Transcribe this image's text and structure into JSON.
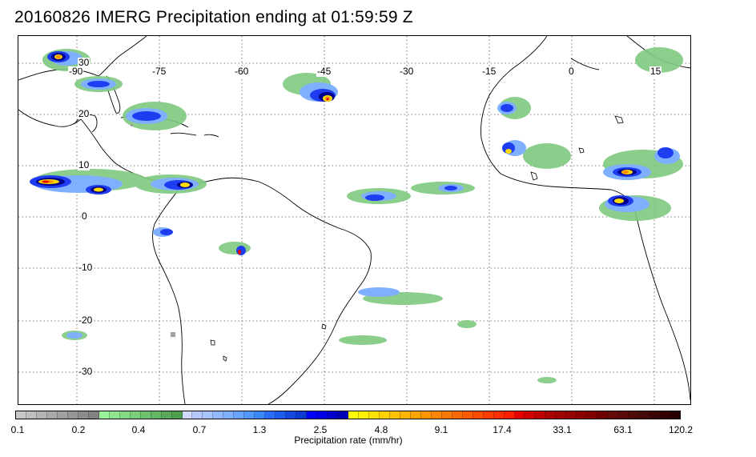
{
  "title": "20160826 IMERG Precipitation ending at 01:59:59 Z",
  "map": {
    "lon_labels": [
      "-90",
      "-75",
      "-60",
      "-45",
      "-30",
      "-15",
      "0",
      "15"
    ],
    "lat_labels": [
      "30",
      "20",
      "10",
      "0",
      "-10",
      "-20",
      "-30"
    ]
  },
  "colorbar": {
    "label": "Precipitation rate (mm/hr)",
    "tick_labels": [
      "0.1",
      "0.2",
      "0.4",
      "0.7",
      "1.3",
      "2.5",
      "4.8",
      "9.1",
      "17.4",
      "33.1",
      "63.1",
      "120.2"
    ],
    "colors": [
      "#c8c8c8",
      "#bebebe",
      "#b4b4b4",
      "#aaaaaa",
      "#a0a0a0",
      "#969696",
      "#8c8c8c",
      "#828282",
      "#9af29a",
      "#8fe68f",
      "#84da84",
      "#79ce79",
      "#6ec26e",
      "#63b663",
      "#58aa58",
      "#4d9e4d",
      "#cfd8ff",
      "#b8c8ff",
      "#a7c6ff",
      "#93b8ff",
      "#7fb0ff",
      "#68a4ff",
      "#5098ff",
      "#3a88ff",
      "#2a6eff",
      "#1e5cf0",
      "#1448e0",
      "#0a3ad0",
      "#0000ff",
      "#0000e6",
      "#0000cc",
      "#0000b8",
      "#ffff00",
      "#fff000",
      "#ffe100",
      "#ffd200",
      "#ffc300",
      "#ffb400",
      "#ffa500",
      "#ff9600",
      "#ff8700",
      "#ff7800",
      "#ff6900",
      "#ff5a00",
      "#ff4b00",
      "#ff3c00",
      "#ff2d00",
      "#ff1e00",
      "#e60000",
      "#d20000",
      "#be0000",
      "#aa0000",
      "#a00000",
      "#960000",
      "#8c0000",
      "#820000",
      "#6e0000",
      "#640a0a",
      "#5a0a0a",
      "#500a0a",
      "#460a0a",
      "#3c0505",
      "#320000",
      "#280000"
    ]
  },
  "precip_colors": {
    "light": "#7fc97f",
    "light_blue": "#7fb0ff",
    "blue": "#1e3cf0",
    "dark_blue": "#00008c",
    "yellow": "#ffdc00",
    "orange": "#ff8c00",
    "red": "#e60000"
  }
}
